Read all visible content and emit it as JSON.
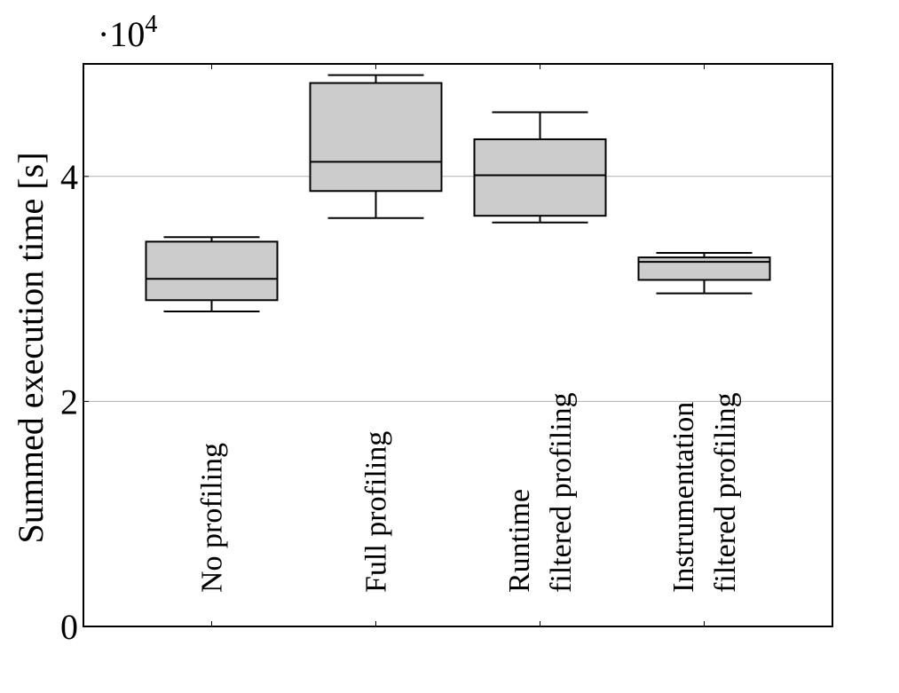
{
  "chart_data": {
    "type": "box",
    "ylabel": "Summed execution time [s]",
    "y_scale_base": "·10",
    "y_scale_exponent": "4",
    "categories": [
      [
        "No profiling"
      ],
      [
        "Full profiling"
      ],
      [
        "Runtime",
        "filtered profiling"
      ],
      [
        "Instrumentation",
        "filtered profiling"
      ]
    ],
    "boxes": [
      {
        "low": 2.8,
        "q1": 2.9,
        "median": 3.09,
        "q3": 3.42,
        "high": 3.46
      },
      {
        "low": 3.63,
        "q1": 3.87,
        "median": 4.13,
        "q3": 4.83,
        "high": 4.9
      },
      {
        "low": 3.59,
        "q1": 3.65,
        "median": 4.01,
        "q3": 4.33,
        "high": 4.57
      },
      {
        "low": 2.96,
        "q1": 3.08,
        "median": 3.24,
        "q3": 3.28,
        "high": 3.32
      }
    ],
    "color": "#cccccc",
    "ylim": [
      0,
      5
    ],
    "yticks": [
      0,
      2,
      4
    ],
    "grid": true
  }
}
